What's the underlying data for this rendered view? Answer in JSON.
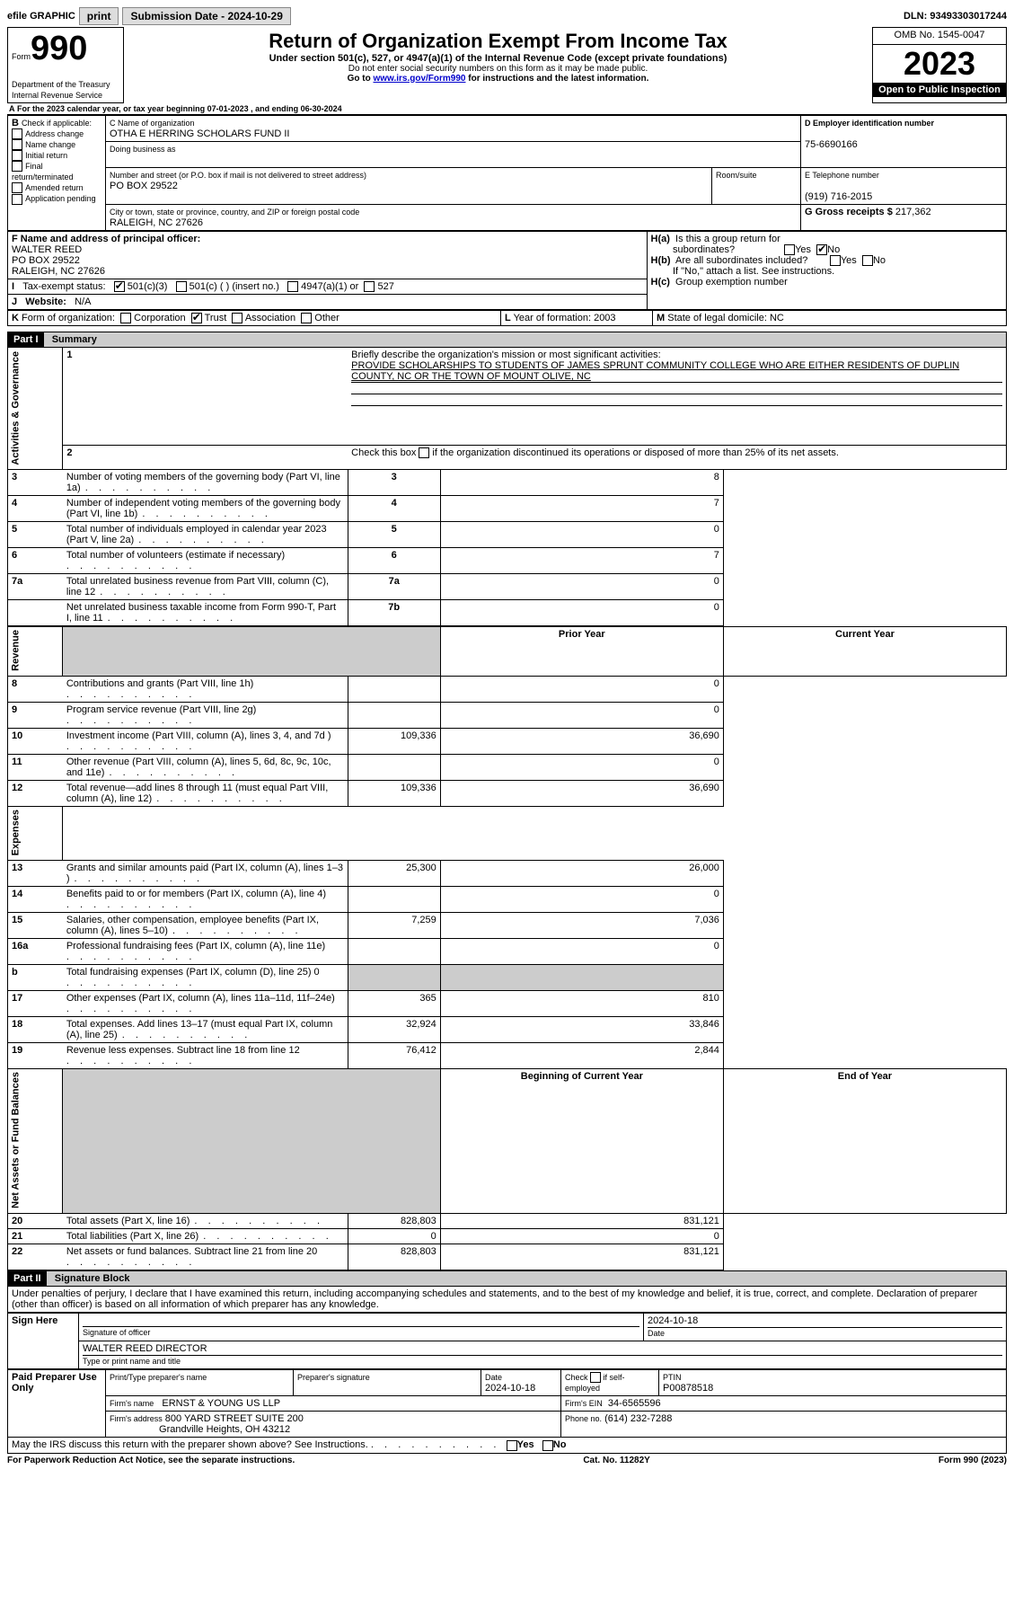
{
  "topbar": {
    "efile_label": "efile GRAPHIC",
    "print_label": "print",
    "submission_label": "Submission Date - 2024-10-29",
    "dln_label": "DLN: 93493303017244"
  },
  "header": {
    "form_prefix": "Form",
    "form_number": "990",
    "dept1": "Department of the Treasury",
    "dept2": "Internal Revenue Service",
    "title": "Return of Organization Exempt From Income Tax",
    "subtitle": "Under section 501(c), 527, or 4947(a)(1) of the Internal Revenue Code (except private foundations)",
    "instr1": "Do not enter social security numbers on this form as it may be made public.",
    "instr2_pre": "Go to ",
    "instr2_link": "www.irs.gov/Form990",
    "instr2_post": " for instructions and the latest information.",
    "omb": "OMB No. 1545-0047",
    "year": "2023",
    "open": "Open to Public Inspection"
  },
  "sectionA": {
    "for_year": "For the 2023 calendar year, or tax year beginning 07-01-2023    , and ending 06-30-2024"
  },
  "sectionB": {
    "label": "B",
    "check_label": "Check if applicable:",
    "items": [
      "Address change",
      "Name change",
      "Initial return",
      "Final return/terminated",
      "Amended return",
      "Application pending"
    ]
  },
  "sectionC": {
    "name_label": "C Name of organization",
    "org_name": "OTHA E HERRING SCHOLARS FUND II",
    "dba_label": "Doing business as",
    "addr_label": "Number and street (or P.O. box if mail is not delivered to street address)",
    "room_label": "Room/suite",
    "addr": "PO BOX 29522",
    "city_label": "City or town, state or province, country, and ZIP or foreign postal code",
    "city": "RALEIGH, NC  27626"
  },
  "sectionD": {
    "label": "D Employer identification number",
    "value": "75-6690166"
  },
  "sectionE": {
    "label": "E Telephone number",
    "value": "(919) 716-2015"
  },
  "sectionG": {
    "label": "G Gross receipts $",
    "value": "217,362"
  },
  "sectionF": {
    "label": "F  Name and address of principal officer:",
    "name": "WALTER REED",
    "addr1": "PO BOX 29522",
    "addr2": "RALEIGH, NC  27626"
  },
  "sectionH": {
    "a_label": "H(a)",
    "a_text1": "Is this a group return for",
    "a_text2": "subordinates?",
    "b_label": "H(b)",
    "b_text1": "Are all subordinates included?",
    "b_text2": "If \"No,\" attach a list. See instructions.",
    "c_label": "H(c)",
    "c_text": "Group exemption number",
    "yes": "Yes",
    "no": "No"
  },
  "sectionI": {
    "label": "I",
    "text": "Tax-exempt status:",
    "opt1": "501(c)(3)",
    "opt2": "501(c) (  ) (insert no.)",
    "opt3": "4947(a)(1) or",
    "opt4": "527"
  },
  "sectionJ": {
    "label": "J",
    "text": "Website:",
    "value": "N/A"
  },
  "sectionK": {
    "label": "K",
    "text": "Form of organization:",
    "corp": "Corporation",
    "trust": "Trust",
    "assoc": "Association",
    "other": "Other"
  },
  "sectionL": {
    "label": "L",
    "text": "Year of formation: 2003"
  },
  "sectionM": {
    "label": "M",
    "text": "State of legal domicile: NC"
  },
  "partI": {
    "header": "Part I",
    "title": "Summary",
    "sideA": "Activities & Governance",
    "sideR": "Revenue",
    "sideE": "Expenses",
    "sideN": "Net Assets or Fund Balances",
    "line1_label": "1",
    "line1_text": "Briefly describe the organization's mission or most significant activities:",
    "line1_val": "PROVIDE SCHOLARSHIPS TO STUDENTS OF JAMES SPRUNT COMMUNITY COLLEGE WHO ARE EITHER RESIDENTS OF DUPLIN COUNTY, NC OR THE TOWN OF MOUNT OLIVE, NC",
    "line2": "Check this box       if the organization discontinued its operations or disposed of more than 25% of its net assets.",
    "rows_gov": [
      {
        "n": "3",
        "t": "Number of voting members of the governing body (Part VI, line 1a)",
        "rn": "3",
        "v": "8"
      },
      {
        "n": "4",
        "t": "Number of independent voting members of the governing body (Part VI, line 1b)",
        "rn": "4",
        "v": "7"
      },
      {
        "n": "5",
        "t": "Total number of individuals employed in calendar year 2023 (Part V, line 2a)",
        "rn": "5",
        "v": "0"
      },
      {
        "n": "6",
        "t": "Total number of volunteers (estimate if necessary)",
        "rn": "6",
        "v": "7"
      },
      {
        "n": "7a",
        "t": "Total unrelated business revenue from Part VIII, column (C), line 12",
        "rn": "7a",
        "v": "0"
      },
      {
        "n": "",
        "t": "Net unrelated business taxable income from Form 990-T, Part I, line 11",
        "rn": "7b",
        "v": "0"
      }
    ],
    "hdr_prior": "Prior Year",
    "hdr_curr": "Current Year",
    "rows_rev": [
      {
        "n": "8",
        "t": "Contributions and grants (Part VIII, line 1h)",
        "p": "",
        "c": "0"
      },
      {
        "n": "9",
        "t": "Program service revenue (Part VIII, line 2g)",
        "p": "",
        "c": "0"
      },
      {
        "n": "10",
        "t": "Investment income (Part VIII, column (A), lines 3, 4, and 7d )",
        "p": "109,336",
        "c": "36,690"
      },
      {
        "n": "11",
        "t": "Other revenue (Part VIII, column (A), lines 5, 6d, 8c, 9c, 10c, and 11e)",
        "p": "",
        "c": "0"
      },
      {
        "n": "12",
        "t": "Total revenue—add lines 8 through 11 (must equal Part VIII, column (A), line 12)",
        "p": "109,336",
        "c": "36,690"
      }
    ],
    "rows_exp": [
      {
        "n": "13",
        "t": "Grants and similar amounts paid (Part IX, column (A), lines 1–3 )",
        "p": "25,300",
        "c": "26,000"
      },
      {
        "n": "14",
        "t": "Benefits paid to or for members (Part IX, column (A), line 4)",
        "p": "",
        "c": "0"
      },
      {
        "n": "15",
        "t": "Salaries, other compensation, employee benefits (Part IX, column (A), lines 5–10)",
        "p": "7,259",
        "c": "7,036"
      },
      {
        "n": "16a",
        "t": "Professional fundraising fees (Part IX, column (A), line 11e)",
        "p": "",
        "c": "0"
      },
      {
        "n": "b",
        "t": "Total fundraising expenses (Part IX, column (D), line 25) 0",
        "p": "GREY",
        "c": "GREY"
      },
      {
        "n": "17",
        "t": "Other expenses (Part IX, column (A), lines 11a–11d, 11f–24e)",
        "p": "365",
        "c": "810"
      },
      {
        "n": "18",
        "t": "Total expenses. Add lines 13–17 (must equal Part IX, column (A), line 25)",
        "p": "32,924",
        "c": "33,846"
      },
      {
        "n": "19",
        "t": "Revenue less expenses. Subtract line 18 from line 12",
        "p": "76,412",
        "c": "2,844"
      }
    ],
    "hdr_beg": "Beginning of Current Year",
    "hdr_end": "End of Year",
    "rows_net": [
      {
        "n": "20",
        "t": "Total assets (Part X, line 16)",
        "p": "828,803",
        "c": "831,121"
      },
      {
        "n": "21",
        "t": "Total liabilities (Part X, line 26)",
        "p": "0",
        "c": "0"
      },
      {
        "n": "22",
        "t": "Net assets or fund balances. Subtract line 21 from line 20",
        "p": "828,803",
        "c": "831,121"
      }
    ]
  },
  "partII": {
    "header": "Part II",
    "title": "Signature Block",
    "decl": "Under penalties of perjury, I declare that I have examined this return, including accompanying schedules and statements, and to the best of my knowledge and belief, it is true, correct, and complete. Declaration of preparer (other than officer) is based on all information of which preparer has any knowledge.",
    "sign_here": "Sign Here",
    "sig_officer_label": "Signature of officer",
    "sig_date": "2024-10-18",
    "officer": "WALTER REED  DIRECTOR",
    "type_name": "Type or print name and title",
    "paid": "Paid Preparer Use Only",
    "prep_name_label": "Print/Type preparer's name",
    "prep_sig_label": "Preparer's signature",
    "date_label": "Date",
    "date_val": "2024-10-18",
    "check_self": "Check       if self-employed",
    "ptin_label": "PTIN",
    "ptin": "P00878518",
    "firm_name_label": "Firm's name",
    "firm_name": "ERNST & YOUNG US LLP",
    "firm_ein_label": "Firm's EIN",
    "firm_ein": "34-6565596",
    "firm_addr_label": "Firm's address",
    "firm_addr1": "800 YARD STREET SUITE 200",
    "firm_addr2": "Grandville Heights, OH  43212",
    "phone_label": "Phone no.",
    "phone": "(614) 232-7288",
    "discuss": "May the IRS discuss this return with the preparer shown above? See Instructions.",
    "yes": "Yes",
    "no": "No"
  },
  "footer": {
    "left": "For Paperwork Reduction Act Notice, see the separate instructions.",
    "mid": "Cat. No. 11282Y",
    "right": "Form 990 (2023)"
  }
}
